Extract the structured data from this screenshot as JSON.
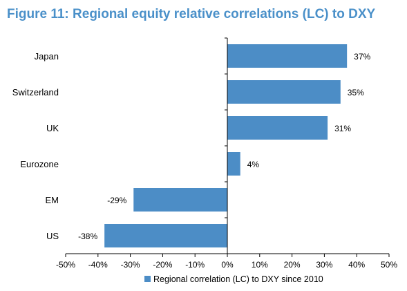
{
  "title": "Figure 11: Regional equity relative correlations (LC) to DXY",
  "colors": {
    "title": "#4A90C9",
    "bar": "#4C8DC6",
    "axis": "#000000"
  },
  "chart_data": {
    "type": "bar",
    "orientation": "horizontal",
    "categories": [
      "Japan",
      "Switzerland",
      "UK",
      "Eurozone",
      "EM",
      "US"
    ],
    "values": [
      37,
      35,
      31,
      4,
      -29,
      -38
    ],
    "value_labels": [
      "37%",
      "35%",
      "31%",
      "4%",
      "-29%",
      "-38%"
    ],
    "xlim": [
      -50,
      50
    ],
    "xticks": [
      -50,
      -40,
      -30,
      -20,
      -10,
      0,
      10,
      20,
      30,
      40,
      50
    ],
    "xtick_labels": [
      "-50%",
      "-40%",
      "-30%",
      "-20%",
      "-10%",
      "0%",
      "10%",
      "20%",
      "30%",
      "40%",
      "50%"
    ],
    "grid": false,
    "legend_position": "bottom",
    "series": [
      {
        "name": "Regional correlation (LC) to DXY since 2010",
        "values": [
          37,
          35,
          31,
          4,
          -29,
          -38
        ]
      }
    ]
  }
}
